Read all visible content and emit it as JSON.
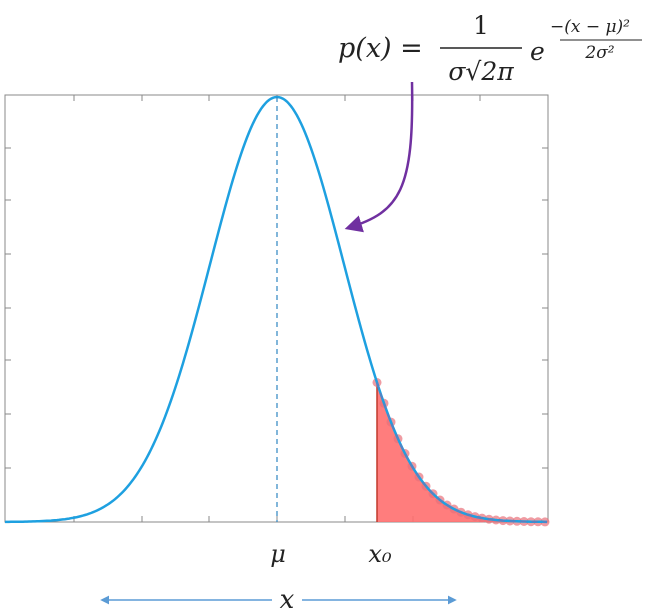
{
  "formula": {
    "lhs": "p(x) =",
    "numerator": "1",
    "denominator": "σ√2π",
    "base": "e",
    "exponent_numerator": "−(x − μ)²",
    "exponent_denominator": "2σ²"
  },
  "labels": {
    "mean": "μ",
    "threshold": "x₀",
    "axis": "x"
  }
}
